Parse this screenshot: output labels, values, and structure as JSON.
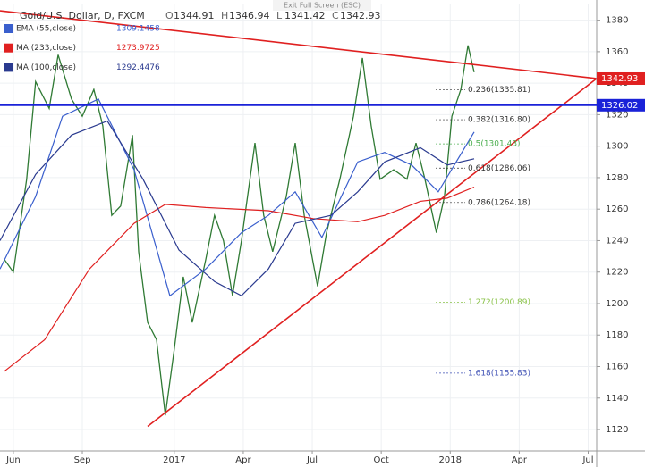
{
  "toolbar_text": "Exit Full Screen (ESC)",
  "chart_data": {
    "type": "line",
    "title": "Gold/U.S. Dollar, D, FXCM",
    "ohlc": [
      {
        "label": "O",
        "value": 1344.91
      },
      {
        "label": "H",
        "value": 1346.94
      },
      {
        "label": "L",
        "value": 1341.42
      },
      {
        "label": "C",
        "value": 1342.93
      }
    ],
    "xlim": [
      -0.58,
      25.37
    ],
    "ylim": [
      1106.4,
      1390
    ],
    "xticks": [
      {
        "value": 0,
        "label": "Jun"
      },
      {
        "value": 3,
        "label": "Sep"
      },
      {
        "value": 7,
        "label": "2017"
      },
      {
        "value": 10,
        "label": "Apr"
      },
      {
        "value": 13,
        "label": "Jul"
      },
      {
        "value": 16,
        "label": "Oct"
      },
      {
        "value": 19,
        "label": "2018"
      },
      {
        "value": 22,
        "label": "Apr"
      },
      {
        "value": 25,
        "label": "Jul"
      }
    ],
    "yticks": [
      1120,
      1140,
      1160,
      1180,
      1200,
      1220,
      1240,
      1260,
      1280,
      1300,
      1320,
      1340,
      1360,
      1380
    ],
    "grid": true,
    "series": [
      {
        "color": "#2f7a34",
        "x": [
          -0.39,
          0,
          0.58,
          0.97,
          1.56,
          1.95,
          2.53,
          3.0,
          3.5,
          3.89,
          4.28,
          4.67,
          5.18,
          5.45,
          5.84,
          6.23,
          6.61,
          7.0,
          7.39,
          7.78,
          8.37,
          8.75,
          9.14,
          9.53,
          9.92,
          10.51,
          10.89,
          11.28,
          11.87,
          12.26,
          12.65,
          13.23,
          13.62,
          14.2,
          14.79,
          15.18,
          15.56,
          15.95,
          16.54,
          17.12,
          17.51,
          17.9,
          18.4,
          18.75,
          19.07,
          19.46,
          19.77,
          20.04
        ],
        "values": [
          1228,
          1220,
          1279,
          1341,
          1324,
          1358,
          1330,
          1319,
          1336,
          1313,
          1256,
          1262,
          1307,
          1233,
          1188,
          1177,
          1129,
          1171,
          1217,
          1188,
          1228,
          1256,
          1240,
          1205,
          1240,
          1302,
          1256,
          1233,
          1268,
          1302,
          1256,
          1211,
          1245,
          1279,
          1319,
          1356,
          1313,
          1279,
          1285,
          1279,
          1302,
          1279,
          1245,
          1268,
          1319,
          1336,
          1364,
          1347
        ]
      },
      {
        "name": "EMA (55,close)",
        "legend_value": 1309.1458,
        "color": "#3a5fcd",
        "x": [
          -0.58,
          0.97,
          2.14,
          3.7,
          5.25,
          6.81,
          8.37,
          9.92,
          11.09,
          12.26,
          13.42,
          14.98,
          16.15,
          17.32,
          18.48,
          20.04
        ],
        "values": [
          1222,
          1268,
          1319,
          1330,
          1285,
          1205,
          1222,
          1245,
          1256,
          1271,
          1242,
          1290,
          1296,
          1288,
          1271,
          1309
        ]
      },
      {
        "name": "MA (233,close)",
        "legend_value": 1273.9725,
        "color": "#e02020",
        "x": [
          -0.39,
          1.36,
          3.31,
          5.25,
          6.61,
          8.37,
          11.09,
          13.04,
          14.98,
          16.15,
          17.7,
          18.87,
          20.04
        ],
        "values": [
          1157,
          1177,
          1222,
          1251,
          1263,
          1261,
          1259,
          1254,
          1252,
          1256,
          1265,
          1267,
          1274
        ]
      },
      {
        "name": "MA (100,close)",
        "legend_value": 1292.4476,
        "color": "#2a3a8f",
        "x": [
          -0.58,
          0.97,
          2.53,
          4.09,
          5.64,
          7.2,
          8.75,
          9.92,
          11.09,
          12.26,
          13.81,
          14.98,
          16.15,
          17.7,
          18.87,
          20.04
        ],
        "values": [
          1240,
          1282,
          1307,
          1316,
          1279,
          1234,
          1214,
          1205,
          1222,
          1251,
          1256,
          1271,
          1290,
          1299,
          1288,
          1292
        ]
      }
    ],
    "trendlines": [
      {
        "color": "#e02020",
        "x": [
          -0.58,
          25.37
        ],
        "values": [
          1386,
          1343
        ]
      },
      {
        "color": "#e02020",
        "x": [
          5.84,
          25.37
        ],
        "values": [
          1122,
          1343
        ]
      }
    ],
    "hlines": [
      {
        "value": 1326.02,
        "color": "#1a22d8"
      }
    ],
    "last_price": {
      "value": 1342.93,
      "color": "#e02020"
    },
    "fib_levels": [
      {
        "label": "0.236(1335.81)",
        "value": 1335.81,
        "color": "#333"
      },
      {
        "label": "0.382(1316.80)",
        "value": 1316.8,
        "color": "#333"
      },
      {
        "label": "0.5(1301.43)",
        "value": 1301.43,
        "color": "#4caf50"
      },
      {
        "label": "0.618(1286.06)",
        "value": 1286.06,
        "color": "#333"
      },
      {
        "label": "0.786(1264.18)",
        "value": 1264.18,
        "color": "#333"
      },
      {
        "label": "1.272(1200.89)",
        "value": 1200.89,
        "color": "#8bc34a"
      },
      {
        "label": "1.618(1155.83)",
        "value": 1155.83,
        "color": "#3f51b5"
      }
    ]
  }
}
